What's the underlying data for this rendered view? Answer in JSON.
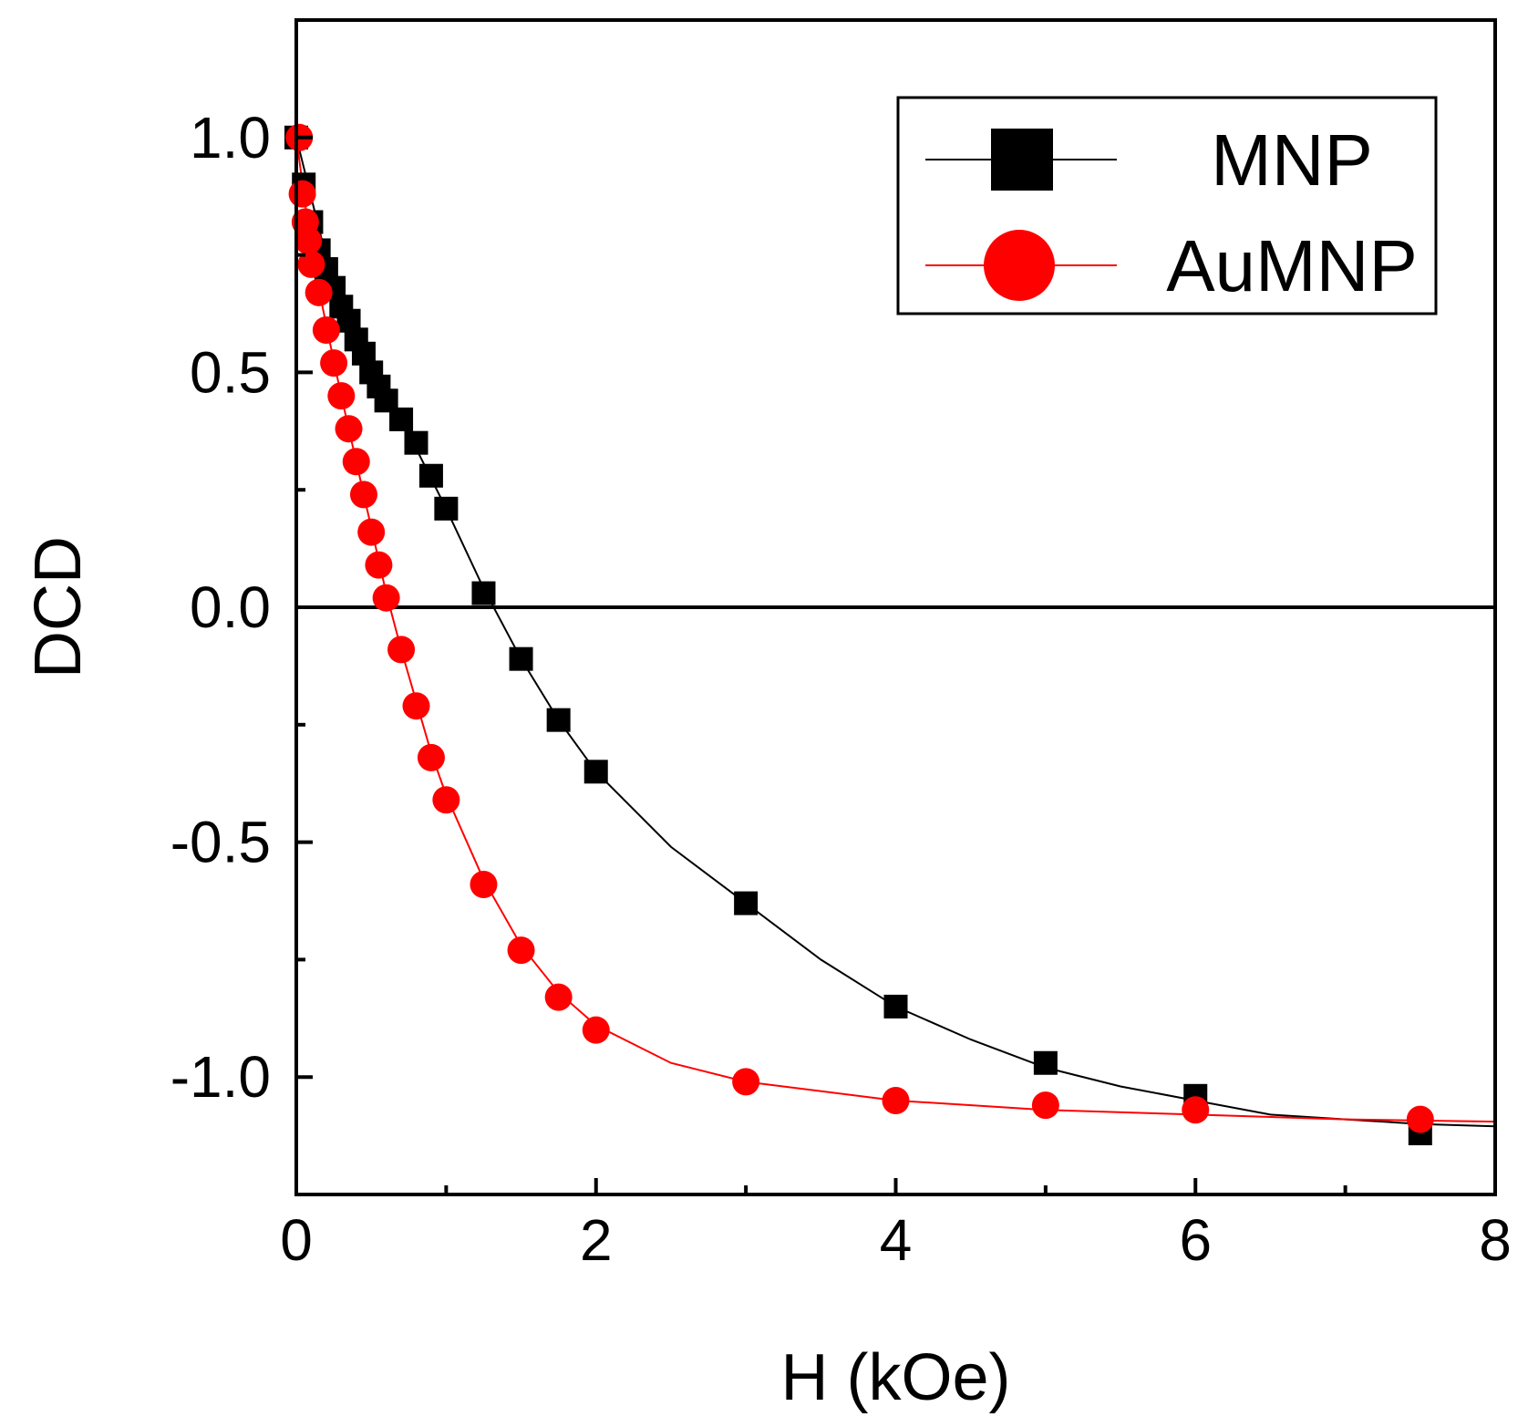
{
  "chart_data": {
    "type": "scatter",
    "title": "",
    "xlabel": "H (kOe)",
    "ylabel": "DCD",
    "xlim": [
      0,
      8
    ],
    "ylim": [
      -1.25,
      1.25
    ],
    "xticks": [
      0,
      2,
      4,
      6,
      8
    ],
    "xtick_labels": [
      "0",
      "2",
      "4",
      "6",
      "8"
    ],
    "yticks": [
      -1.0,
      -0.5,
      0.0,
      0.5,
      1.0
    ],
    "ytick_labels": [
      "-1.0",
      "-0.5",
      "0.0",
      "0.5",
      "1.0"
    ],
    "zero_line": true,
    "legend_position": "top-right",
    "series": [
      {
        "name": "MNP",
        "marker": "square",
        "color": "#000000",
        "fit_line": true,
        "x": [
          0,
          0.05,
          0.1,
          0.15,
          0.2,
          0.25,
          0.3,
          0.35,
          0.4,
          0.45,
          0.5,
          0.55,
          0.6,
          0.7,
          0.8,
          0.9,
          1.0,
          1.25,
          1.5,
          1.75,
          2.0,
          3.0,
          4.0,
          5.0,
          6.0,
          7.5
        ],
        "y": [
          1.0,
          0.9,
          0.82,
          0.76,
          0.72,
          0.68,
          0.64,
          0.61,
          0.57,
          0.54,
          0.5,
          0.47,
          0.44,
          0.4,
          0.35,
          0.28,
          0.21,
          0.03,
          -0.11,
          -0.24,
          -0.35,
          -0.63,
          -0.85,
          -0.97,
          -1.04,
          -1.12
        ],
        "fit": [
          [
            0,
            1.0
          ],
          [
            0.25,
            0.68
          ],
          [
            0.5,
            0.5
          ],
          [
            0.75,
            0.37
          ],
          [
            1.0,
            0.21
          ],
          [
            1.25,
            0.04
          ],
          [
            1.5,
            -0.11
          ],
          [
            1.75,
            -0.24
          ],
          [
            2.0,
            -0.35
          ],
          [
            2.5,
            -0.51
          ],
          [
            3.0,
            -0.63
          ],
          [
            3.5,
            -0.75
          ],
          [
            4.0,
            -0.85
          ],
          [
            4.5,
            -0.92
          ],
          [
            5.0,
            -0.98
          ],
          [
            5.5,
            -1.02
          ],
          [
            6.0,
            -1.05
          ],
          [
            6.5,
            -1.08
          ],
          [
            7.0,
            -1.09
          ],
          [
            7.5,
            -1.1
          ],
          [
            8.0,
            -1.105
          ]
        ]
      },
      {
        "name": "AuMNP",
        "marker": "circle",
        "color": "#ff0000",
        "fit_line": true,
        "x": [
          0.02,
          0.04,
          0.06,
          0.08,
          0.1,
          0.15,
          0.2,
          0.25,
          0.3,
          0.35,
          0.4,
          0.45,
          0.5,
          0.55,
          0.6,
          0.7,
          0.8,
          0.9,
          1.0,
          1.25,
          1.5,
          1.75,
          2.0,
          3.0,
          4.0,
          5.0,
          6.0,
          7.5
        ],
        "y": [
          1.0,
          0.88,
          0.82,
          0.78,
          0.73,
          0.67,
          0.59,
          0.52,
          0.45,
          0.38,
          0.31,
          0.24,
          0.16,
          0.09,
          0.02,
          -0.09,
          -0.21,
          -0.32,
          -0.41,
          -0.59,
          -0.73,
          -0.83,
          -0.9,
          -1.01,
          -1.05,
          -1.06,
          -1.07,
          -1.09
        ],
        "fit": [
          [
            0,
            1.0
          ],
          [
            0.05,
            0.88
          ],
          [
            0.1,
            0.76
          ],
          [
            0.2,
            0.6
          ],
          [
            0.3,
            0.45
          ],
          [
            0.4,
            0.31
          ],
          [
            0.5,
            0.17
          ],
          [
            0.6,
            0.03
          ],
          [
            0.7,
            -0.09
          ],
          [
            0.8,
            -0.2
          ],
          [
            0.9,
            -0.31
          ],
          [
            1.0,
            -0.4
          ],
          [
            1.25,
            -0.58
          ],
          [
            1.5,
            -0.72
          ],
          [
            1.75,
            -0.82
          ],
          [
            2.0,
            -0.89
          ],
          [
            2.5,
            -0.97
          ],
          [
            3.0,
            -1.01
          ],
          [
            4.0,
            -1.05
          ],
          [
            5.0,
            -1.07
          ],
          [
            6.0,
            -1.08
          ],
          [
            7.0,
            -1.09
          ],
          [
            8.0,
            -1.095
          ]
        ]
      }
    ]
  }
}
